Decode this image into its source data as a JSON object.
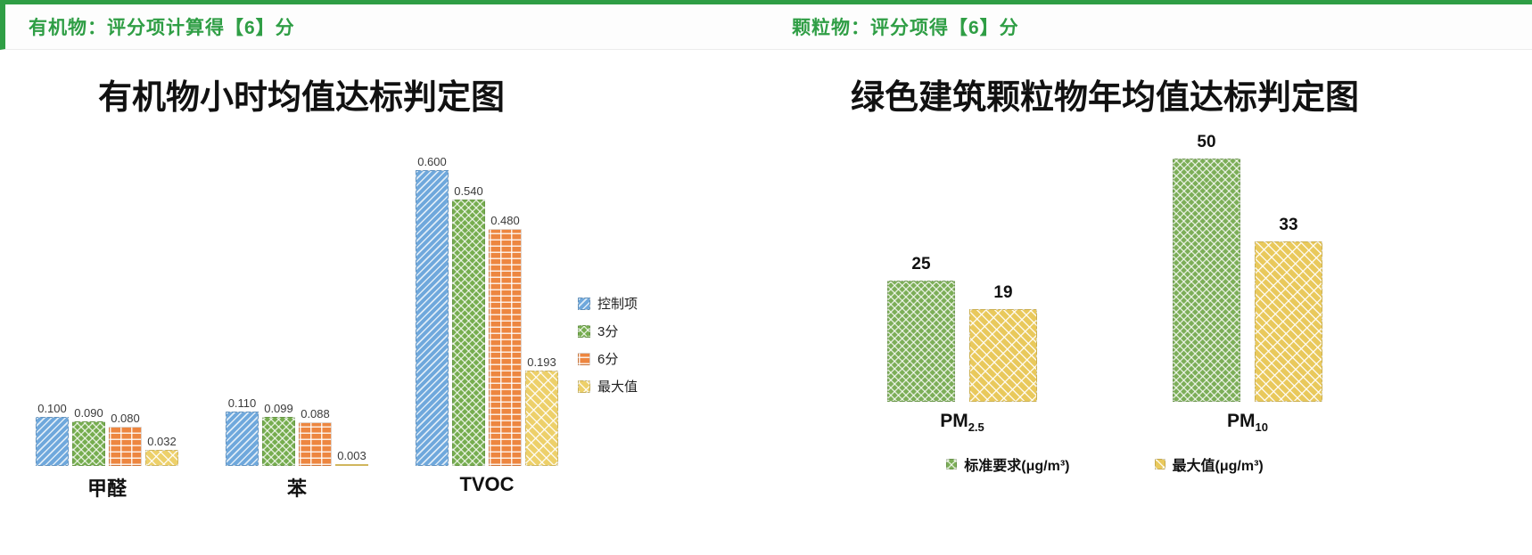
{
  "header": {
    "left": "有机物：评分项计算得【6】分",
    "right": "颗粒物：评分项得【6】分",
    "accent_color": "#2f9e45"
  },
  "chart_data": [
    {
      "type": "bar",
      "title": "有机物小时均值达标判定图",
      "categories": [
        "甲醛",
        "苯",
        "TVOC"
      ],
      "series": [
        {
          "name": "控制项",
          "color": "#6fa8dc",
          "pattern": "diagonal",
          "values": [
            0.1,
            0.11,
            0.6
          ]
        },
        {
          "name": "3分",
          "color": "#76ad4f",
          "pattern": "crosshatch",
          "values": [
            0.09,
            0.099,
            0.54
          ]
        },
        {
          "name": "6分",
          "color": "#ed8640",
          "pattern": "brick",
          "values": [
            0.08,
            0.088,
            0.48
          ]
        },
        {
          "name": "最大值",
          "color": "#edd06a",
          "pattern": "diagonal-brick",
          "values": [
            0.032,
            0.003,
            0.193
          ]
        }
      ],
      "label_decimals": 3,
      "ylim": [
        0,
        0.65
      ],
      "grid": false,
      "legend_position": "right"
    },
    {
      "type": "bar",
      "title": "绿色建筑颗粒物年均值达标判定图",
      "categories": [
        "PM2.5",
        "PM10"
      ],
      "categories_display": [
        {
          "base": "PM",
          "sub": "2.5"
        },
        {
          "base": "PM",
          "sub": "10"
        }
      ],
      "series": [
        {
          "name": "标准要求(μg/m³)",
          "color": "#7cae58",
          "pattern": "crosshatch",
          "values": [
            25,
            50
          ]
        },
        {
          "name": "最大值(μg/m³)",
          "color": "#e9c95c",
          "pattern": "diagonal-brick",
          "values": [
            19,
            33
          ]
        }
      ],
      "label_decimals": 0,
      "ylim": [
        0,
        55
      ],
      "grid": false,
      "legend_position": "bottom"
    }
  ]
}
